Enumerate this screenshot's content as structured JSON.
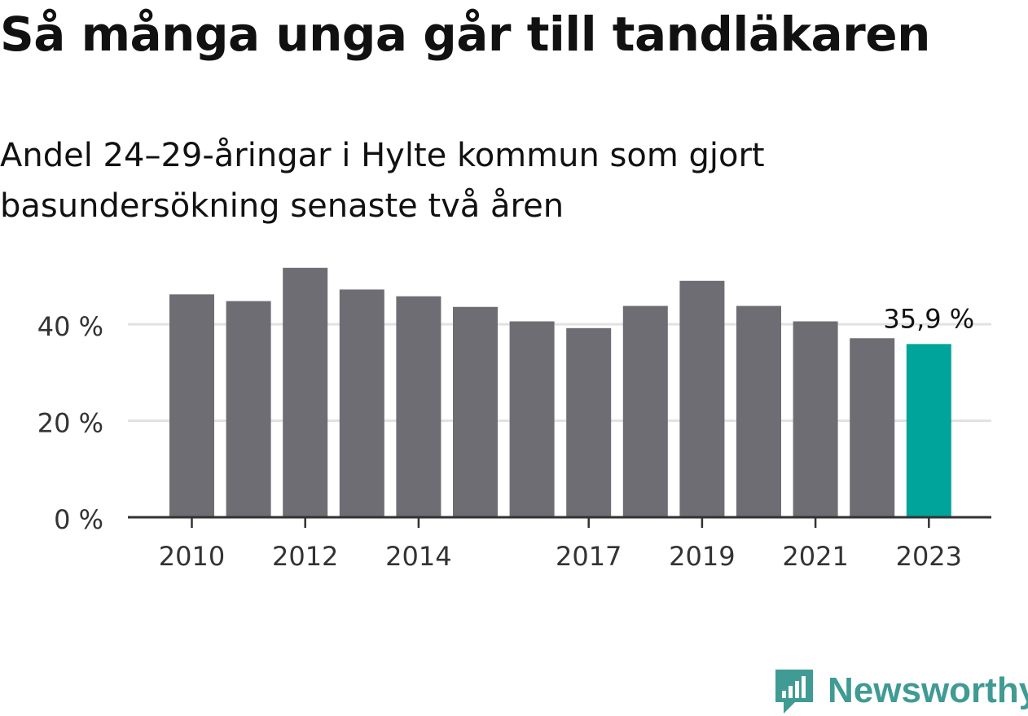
{
  "header": {
    "title": "Så många unga går till tandläkaren",
    "subtitle": "Andel 24–29-åringar i Hylte kommun som gjort basundersökning senaste två åren"
  },
  "brand": {
    "name": "Newsworthy",
    "icon": "newsworthy-logo-icon",
    "color": "#3f9b94"
  },
  "colors": {
    "bar": "#6e6d73",
    "highlight": "#00a49a",
    "grid": "#e2e2e2",
    "axis": "#333333"
  },
  "chart_data": {
    "type": "bar",
    "title": "Så många unga går till tandläkaren",
    "subtitle": "Andel 24–29-åringar i Hylte kommun som gjort basundersökning senaste två åren",
    "categories": [
      "2010",
      "2011",
      "2012",
      "2013",
      "2014",
      "2015",
      "2016",
      "2017",
      "2018",
      "2019",
      "2020",
      "2021",
      "2022",
      "2023"
    ],
    "values": [
      46.2,
      44.8,
      51.7,
      47.2,
      45.8,
      43.6,
      40.6,
      39.2,
      43.8,
      49.0,
      43.8,
      40.6,
      37.1,
      35.9
    ],
    "x_tick_labels": [
      "2010",
      "2012",
      "2014",
      "2017",
      "2019",
      "2021",
      "2023"
    ],
    "y_ticks": [
      0,
      20,
      40
    ],
    "y_tick_labels": [
      "0 %",
      "20 %",
      "40 %"
    ],
    "ylim": [
      0,
      52
    ],
    "grid": true,
    "xlabel": "",
    "ylabel": "",
    "highlight_index": 13,
    "annotation": {
      "category": "2023",
      "text": "35,9 %"
    }
  }
}
